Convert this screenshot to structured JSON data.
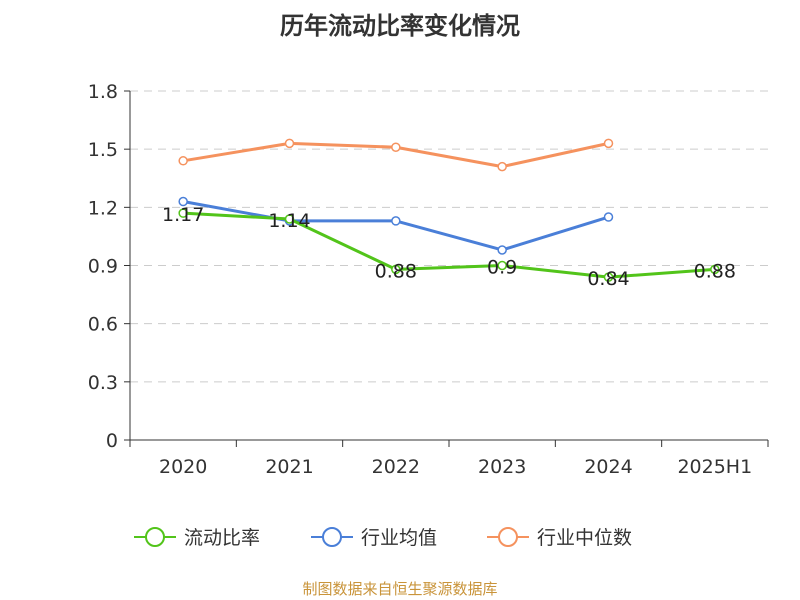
{
  "chart_data": {
    "type": "line",
    "title": "历年流动比率变化情况",
    "categories": [
      "2020",
      "2021",
      "2022",
      "2023",
      "2024",
      "2025H1"
    ],
    "y_ticks": [
      "0",
      "0.3",
      "0.6",
      "0.9",
      "1.2",
      "1.5",
      "1.8"
    ],
    "ylim": [
      0,
      1.8
    ],
    "grid": true,
    "legend_position": "bottom",
    "series": [
      {
        "name": "流动比率",
        "color": "#52c41a",
        "values": [
          1.17,
          1.14,
          0.88,
          0.9,
          0.84,
          0.88
        ],
        "labels": [
          "1.17",
          "1.14",
          "0.88",
          "0.9",
          "0.84",
          "0.88"
        ]
      },
      {
        "name": "行业均值",
        "color": "#4a7fd8",
        "values": [
          1.23,
          1.13,
          1.13,
          0.98,
          1.15,
          null
        ]
      },
      {
        "name": "行业中位数",
        "color": "#f5925e",
        "values": [
          1.44,
          1.53,
          1.51,
          1.41,
          1.53,
          null
        ]
      }
    ]
  },
  "source": "制图数据来自恒生聚源数据库"
}
